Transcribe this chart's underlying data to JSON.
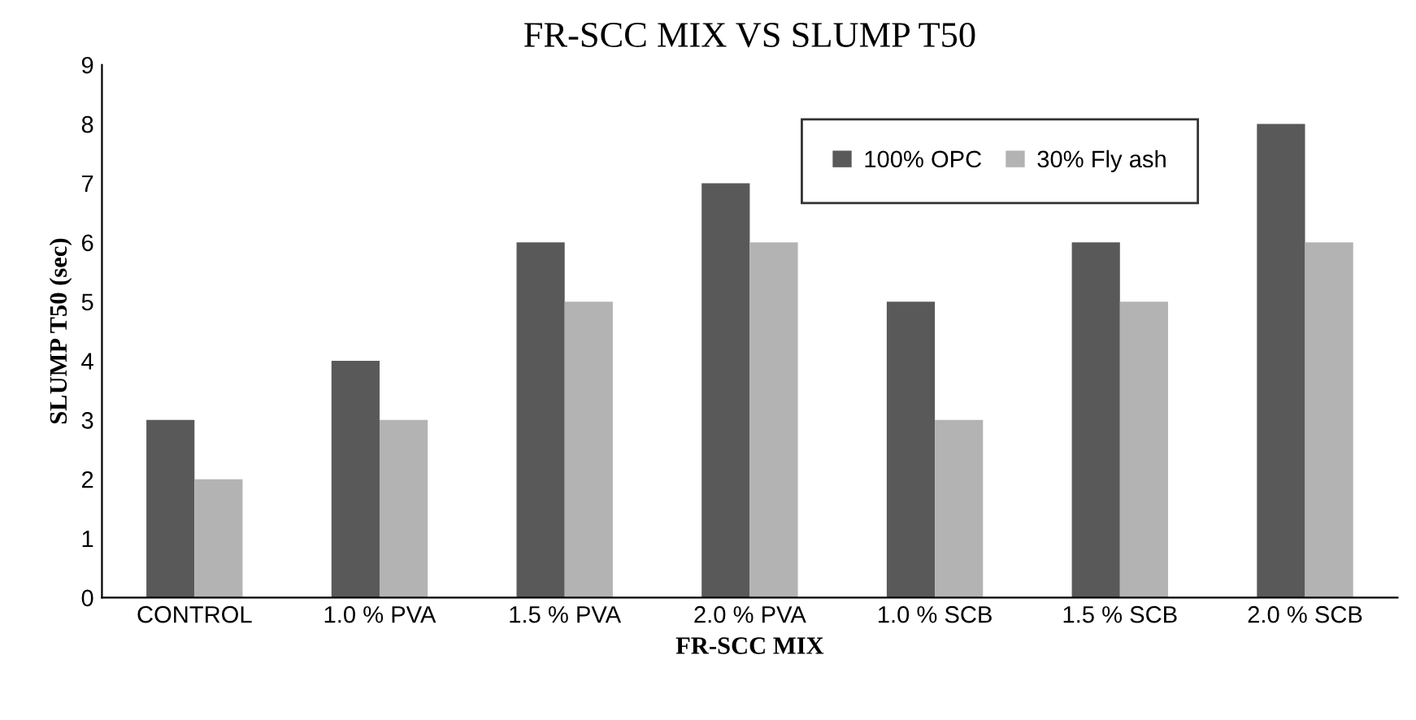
{
  "chart_data": {
    "type": "bar",
    "title": "FR-SCC MIX VS SLUMP T50",
    "xlabel": "FR-SCC MIX",
    "ylabel": "SLUMP T50 (sec)",
    "categories": [
      "CONTROL",
      "1.0 % PVA",
      "1.5 % PVA",
      "2.0 % PVA",
      "1.0 % SCB",
      "1.5 % SCB",
      "2.0 % SCB"
    ],
    "series": [
      {
        "name": "100% OPC",
        "color": "#595959",
        "values": [
          3,
          4,
          6,
          7,
          5,
          6,
          8
        ]
      },
      {
        "name": "30% Fly ash",
        "color": "#b3b3b3",
        "values": [
          2,
          3,
          5,
          6,
          3,
          5,
          6
        ]
      }
    ],
    "ylim": [
      0,
      9
    ],
    "yticks": [
      0,
      1,
      2,
      3,
      4,
      5,
      6,
      7,
      8,
      9
    ],
    "grid": false,
    "legend": "top right"
  }
}
